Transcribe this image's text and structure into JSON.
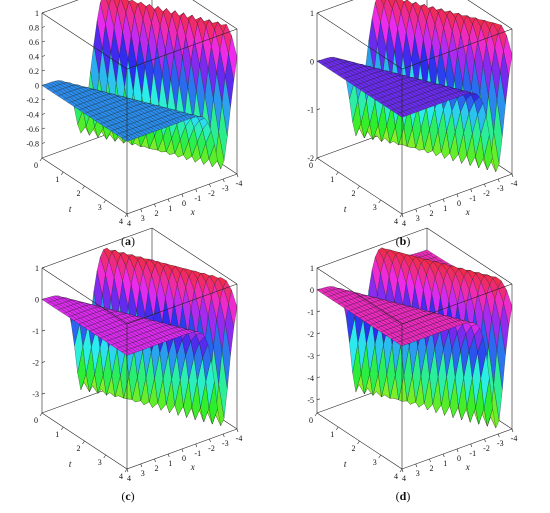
{
  "chart_data": [
    {
      "type": "surface",
      "caption_letter": "a",
      "xlabel": "x",
      "tlabel": "t",
      "x_ticks": [
        "-4",
        "-3",
        "-2",
        "-1",
        "0",
        "1",
        "2",
        "3",
        "4"
      ],
      "t_ticks": [
        "0",
        "1",
        "2",
        "3",
        "4"
      ],
      "z_ticks": [
        "1",
        "0.8",
        "0.6",
        "0.4",
        "0.2",
        "0",
        "-0.2",
        "-0.4",
        "-0.6",
        "-0.8"
      ],
      "zlim": [
        -1,
        1
      ],
      "xlim": [
        -4,
        4
      ],
      "tlim": [
        0,
        4
      ],
      "depth": 1
    },
    {
      "type": "surface",
      "caption_letter": "b",
      "xlabel": "x",
      "tlabel": "t",
      "x_ticks": [
        "-4",
        "-3",
        "-2",
        "-1",
        "0",
        "1",
        "2",
        "3",
        "4"
      ],
      "t_ticks": [
        "0",
        "1",
        "2",
        "3",
        "4"
      ],
      "z_ticks": [
        "1",
        "0",
        "-1",
        "-2"
      ],
      "zlim": [
        -2,
        1
      ],
      "xlim": [
        -4,
        4
      ],
      "tlim": [
        0,
        4
      ],
      "depth": 2
    },
    {
      "type": "surface",
      "caption_letter": "c",
      "xlabel": "x",
      "tlabel": "t",
      "x_ticks": [
        "-4",
        "-3",
        "-2",
        "-1",
        "0",
        "1",
        "2",
        "3",
        "4"
      ],
      "t_ticks": [
        "0",
        "1",
        "2",
        "3",
        "4"
      ],
      "z_ticks": [
        "1",
        "0",
        "-1",
        "-2",
        "-3"
      ],
      "zlim": [
        -3.6,
        1
      ],
      "xlim": [
        -4,
        4
      ],
      "tlim": [
        0,
        4
      ],
      "depth": 3.5
    },
    {
      "type": "surface",
      "caption_letter": "d",
      "xlabel": "x",
      "tlabel": "t",
      "x_ticks": [
        "-4",
        "-3",
        "-2",
        "-1",
        "0",
        "1",
        "2",
        "3",
        "4"
      ],
      "t_ticks": [
        "0",
        "1",
        "2",
        "3",
        "4"
      ],
      "z_ticks": [
        "1",
        "0",
        "-1",
        "-2",
        "-3",
        "-4",
        "-5"
      ],
      "zlim": [
        -5.6,
        1
      ],
      "xlim": [
        -4,
        4
      ],
      "tlim": [
        0,
        4
      ],
      "depth": 5.5
    }
  ]
}
